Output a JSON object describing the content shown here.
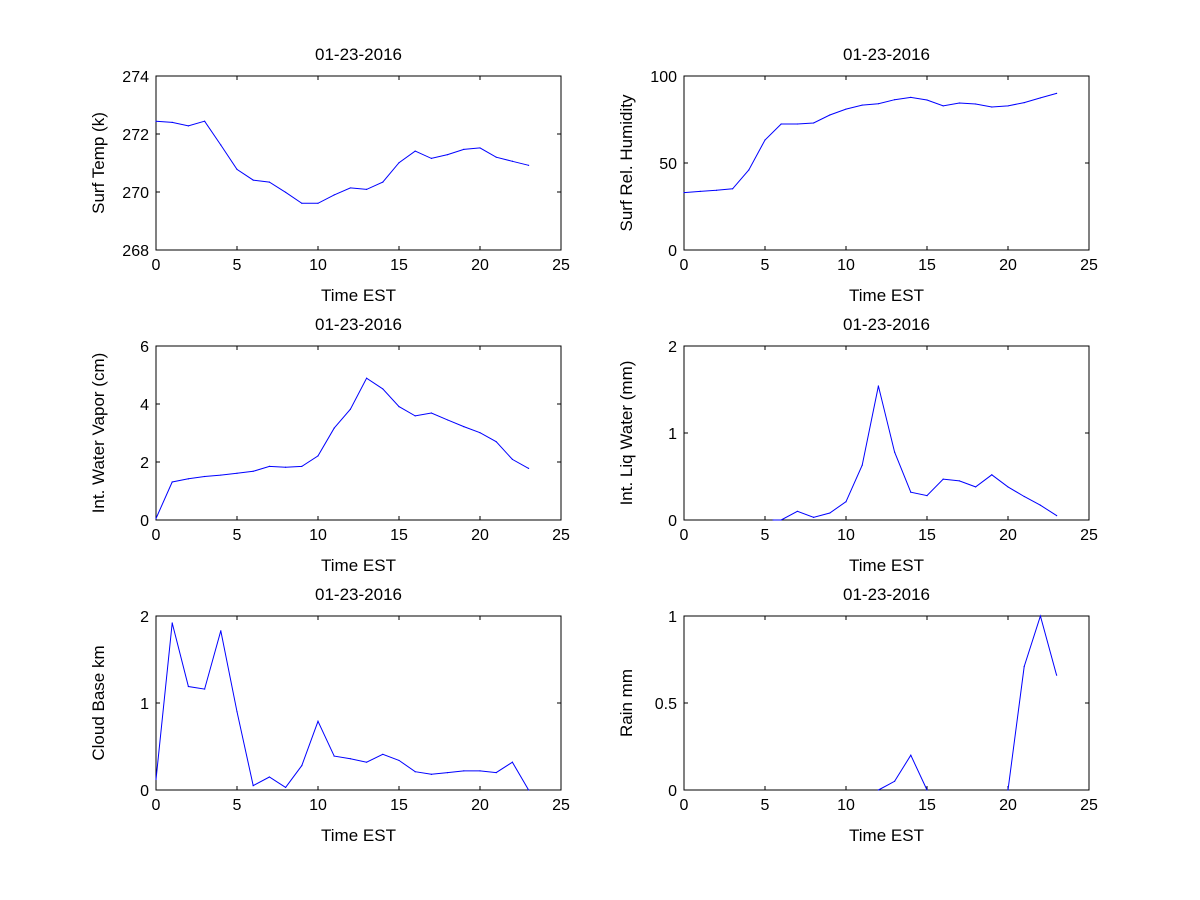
{
  "chart_data": [
    {
      "type": "line",
      "title": "01-23-2016",
      "xlabel": "Time EST",
      "ylabel": "Surf Temp (k)",
      "xlim": [
        0,
        25
      ],
      "ylim": [
        268,
        274
      ],
      "xticks": [
        0,
        5,
        10,
        15,
        20,
        25
      ],
      "yticks": [
        268,
        270,
        272,
        274
      ],
      "grid": false,
      "series": [
        {
          "name": "Surf Temp",
          "color": "#0000ff",
          "x": [
            0,
            1,
            2,
            3,
            4,
            5,
            6,
            7,
            8,
            9,
            10,
            11,
            12,
            13,
            14,
            15,
            16,
            17,
            18,
            19,
            20,
            21,
            22,
            23
          ],
          "y": [
            272.44,
            272.4,
            272.28,
            272.44,
            271.62,
            270.78,
            270.41,
            270.34,
            269.99,
            269.61,
            269.61,
            269.9,
            270.14,
            270.09,
            270.34,
            271.01,
            271.41,
            271.16,
            271.29,
            271.47,
            271.52,
            271.2,
            271.06,
            270.92
          ]
        }
      ]
    },
    {
      "type": "line",
      "title": "01-23-2016",
      "xlabel": "Time EST",
      "ylabel": "Surf Rel. Humidity",
      "xlim": [
        0,
        25
      ],
      "ylim": [
        0,
        100
      ],
      "xticks": [
        0,
        5,
        10,
        15,
        20,
        25
      ],
      "yticks": [
        0,
        50,
        100
      ],
      "grid": false,
      "series": [
        {
          "name": "Surf Rel. Humidity",
          "color": "#0000ff",
          "x": [
            0,
            1,
            2,
            3,
            4,
            5,
            6,
            7,
            8,
            9,
            10,
            11,
            12,
            13,
            14,
            15,
            16,
            17,
            18,
            19,
            20,
            21,
            22,
            23
          ],
          "y": [
            33.0,
            33.7,
            34.3,
            35.2,
            46.0,
            63.2,
            72.4,
            72.4,
            73.0,
            77.6,
            81.0,
            83.3,
            84.1,
            86.4,
            87.7,
            86.2,
            82.8,
            84.5,
            83.9,
            82.2,
            82.8,
            84.7,
            87.4,
            90.0
          ]
        }
      ]
    },
    {
      "type": "line",
      "title": "01-23-2016",
      "xlabel": "Time EST",
      "ylabel": "Int. Water Vapor (cm)",
      "xlim": [
        0,
        25
      ],
      "ylim": [
        0,
        6
      ],
      "xticks": [
        0,
        5,
        10,
        15,
        20,
        25
      ],
      "yticks": [
        0,
        2,
        4,
        6
      ],
      "grid": false,
      "series": [
        {
          "name": "Int. Water Vapor",
          "color": "#0000ff",
          "x": [
            0,
            1,
            2,
            3,
            4,
            5,
            6,
            7,
            8,
            9,
            10,
            11,
            12,
            13,
            14,
            15,
            16,
            17,
            18,
            19,
            20,
            21,
            22,
            23
          ],
          "y": [
            0.05,
            1.31,
            1.42,
            1.5,
            1.55,
            1.61,
            1.68,
            1.85,
            1.82,
            1.85,
            2.21,
            3.17,
            3.82,
            4.89,
            4.52,
            3.91,
            3.59,
            3.69,
            3.45,
            3.22,
            3.01,
            2.7,
            2.09,
            1.78
          ]
        }
      ]
    },
    {
      "type": "line",
      "title": "01-23-2016",
      "xlabel": "Time EST",
      "ylabel": "Int. Liq Water (mm)",
      "xlim": [
        0,
        25
      ],
      "ylim": [
        0,
        2
      ],
      "xticks": [
        0,
        5,
        10,
        15,
        20,
        25
      ],
      "yticks": [
        0,
        1,
        2
      ],
      "grid": false,
      "series": [
        {
          "name": "Int. Liq Water",
          "color": "#0000ff",
          "x": [
            5.5,
            6,
            7,
            8,
            9,
            10,
            11,
            12,
            13,
            14,
            15,
            16,
            17,
            18,
            19,
            20,
            21,
            22,
            23
          ],
          "y": [
            0.0,
            0.0,
            0.1,
            0.03,
            0.08,
            0.21,
            0.63,
            1.54,
            0.78,
            0.32,
            0.28,
            0.47,
            0.45,
            0.38,
            0.52,
            0.38,
            0.27,
            0.17,
            0.05
          ]
        }
      ]
    },
    {
      "type": "line",
      "title": "01-23-2016",
      "xlabel": "Time EST",
      "ylabel": "Cloud Base km",
      "xlim": [
        0,
        25
      ],
      "ylim": [
        0,
        2
      ],
      "xticks": [
        0,
        5,
        10,
        15,
        20,
        25
      ],
      "yticks": [
        0,
        1,
        2
      ],
      "grid": false,
      "series": [
        {
          "name": "Cloud Base",
          "color": "#0000ff",
          "x": [
            0,
            1,
            2,
            3,
            4,
            5,
            6,
            7,
            8,
            9,
            10,
            11,
            12,
            13,
            14,
            15,
            16,
            17,
            18,
            19,
            20,
            21,
            22,
            23
          ],
          "y": [
            0.12,
            1.92,
            1.19,
            1.16,
            1.83,
            0.9,
            0.05,
            0.15,
            0.03,
            0.28,
            0.79,
            0.39,
            0.36,
            0.32,
            0.41,
            0.34,
            0.21,
            0.18,
            0.2,
            0.22,
            0.22,
            0.2,
            0.32,
            0.0
          ]
        }
      ]
    },
    {
      "type": "line",
      "title": "01-23-2016",
      "xlabel": "Time EST",
      "ylabel": "Rain mm",
      "xlim": [
        0,
        25
      ],
      "ylim": [
        0,
        1
      ],
      "xticks": [
        0,
        5,
        10,
        15,
        20,
        25
      ],
      "yticks": [
        0,
        0.5,
        1
      ],
      "grid": false,
      "series": [
        {
          "name": "Rain",
          "color": "#0000ff",
          "x": [
            12,
            13,
            14,
            15,
            16,
            17,
            18,
            19,
            20,
            21,
            22,
            23
          ],
          "y": [
            0,
            0.05,
            0.2,
            0,
            null,
            null,
            null,
            null,
            0,
            0.71,
            1.0,
            0.66
          ]
        }
      ]
    }
  ]
}
